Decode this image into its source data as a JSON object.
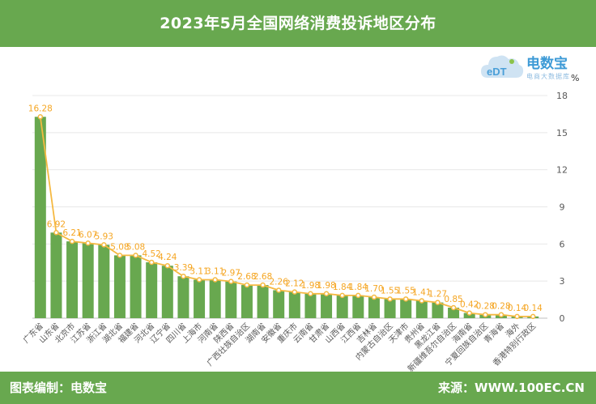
{
  "header": {
    "title": "2023年5月全国网络消费投诉地区分布"
  },
  "footer": {
    "credit": "图表编制：电数宝",
    "source": "来源：WWW.100EC.CN"
  },
  "logo": {
    "name": "电数宝",
    "slogan": "电商大数据库"
  },
  "colors": {
    "bar": "#68a84f",
    "line": "#f5b942",
    "label": "#f5a623",
    "header": "#68a84f"
  },
  "chart_data": {
    "type": "bar",
    "unit": "%",
    "categories": [
      "广东省",
      "山东省",
      "北京市",
      "江苏省",
      "浙江省",
      "湖北省",
      "福建省",
      "河北省",
      "辽宁省",
      "四川省",
      "上海市",
      "河南省",
      "陕西省",
      "广西壮族自治区",
      "湖南省",
      "安徽省",
      "重庆市",
      "云南省",
      "甘肃省",
      "山西省",
      "江西省",
      "吉林省",
      "内蒙古自治区",
      "天津市",
      "贵州省",
      "黑龙江省",
      "新疆维吾尔自治区",
      "海南省",
      "宁夏回族自治区",
      "青海省",
      "海外",
      "香港特别行政区"
    ],
    "values": [
      16.28,
      6.92,
      6.21,
      6.07,
      5.93,
      5.08,
      5.08,
      4.52,
      4.24,
      3.39,
      3.11,
      3.11,
      2.97,
      2.68,
      2.68,
      2.26,
      2.12,
      1.98,
      1.98,
      1.84,
      1.84,
      1.7,
      1.55,
      1.55,
      1.41,
      1.27,
      0.85,
      0.42,
      0.28,
      0.28,
      0.14,
      0.14
    ],
    "value_labels": [
      "16.28",
      "6.92",
      "6.21",
      "6.07",
      "5.93",
      "5.08",
      "5.08",
      "4.52",
      "4.24",
      "3.39",
      "3.11",
      "3.11",
      "2.97",
      "2.68",
      "2.68",
      "2.26",
      "2.12",
      "1.98",
      "1.98",
      "1.84",
      "1.84",
      "1.70",
      "1.55",
      "1.55",
      "1.41",
      "1.27",
      "0.85",
      "0.42",
      "0.28",
      "0.28",
      "0.14",
      "0.14"
    ],
    "ylim": [
      0,
      18
    ],
    "yticks": [
      "0",
      "3",
      "6",
      "9",
      "12",
      "15",
      "18"
    ],
    "grid": true,
    "y_axis_position": "right",
    "overlay_line": true
  }
}
